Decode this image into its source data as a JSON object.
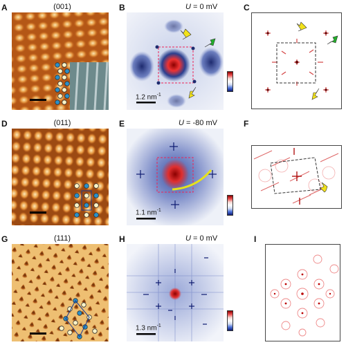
{
  "figure": {
    "rows": [
      {
        "stm": {
          "label": "A",
          "title": "(001)"
        },
        "fft": {
          "label": "B",
          "u_var": "U",
          "u_val": "= 0 mV",
          "scalebar": "1.2 nm",
          "scalebar_sup": "-1"
        },
        "sim": {
          "label": "C"
        }
      },
      {
        "stm": {
          "label": "D",
          "title": "(011)"
        },
        "fft": {
          "label": "E",
          "u_var": "U",
          "u_val": "= -80 mV",
          "scalebar": "1.1 nm",
          "scalebar_sup": "-1"
        },
        "sim": {
          "label": "F"
        }
      },
      {
        "stm": {
          "label": "G",
          "title": "(111)"
        },
        "fft": {
          "label": "H",
          "u_var": "U",
          "u_val": "= 0 mV",
          "scalebar": "1.3 nm",
          "scalebar_sup": "-1"
        },
        "sim": {
          "label": "I"
        }
      }
    ],
    "colors": {
      "stm_dark": "#7a3a0c",
      "stm_mid": "#c8661e",
      "stm_light": "#fbe3a8",
      "fft_bg": "#e4e9f4",
      "fft_blue": "#2a3f8f",
      "fft_red": "#d22020",
      "arrow_yellow": "#f2e21a",
      "arrow_green": "#22b02a",
      "atom_blue": "#2a8fc8",
      "atom_cream": "#fbf3c6",
      "curve_yellow": "#e6e21c"
    }
  }
}
